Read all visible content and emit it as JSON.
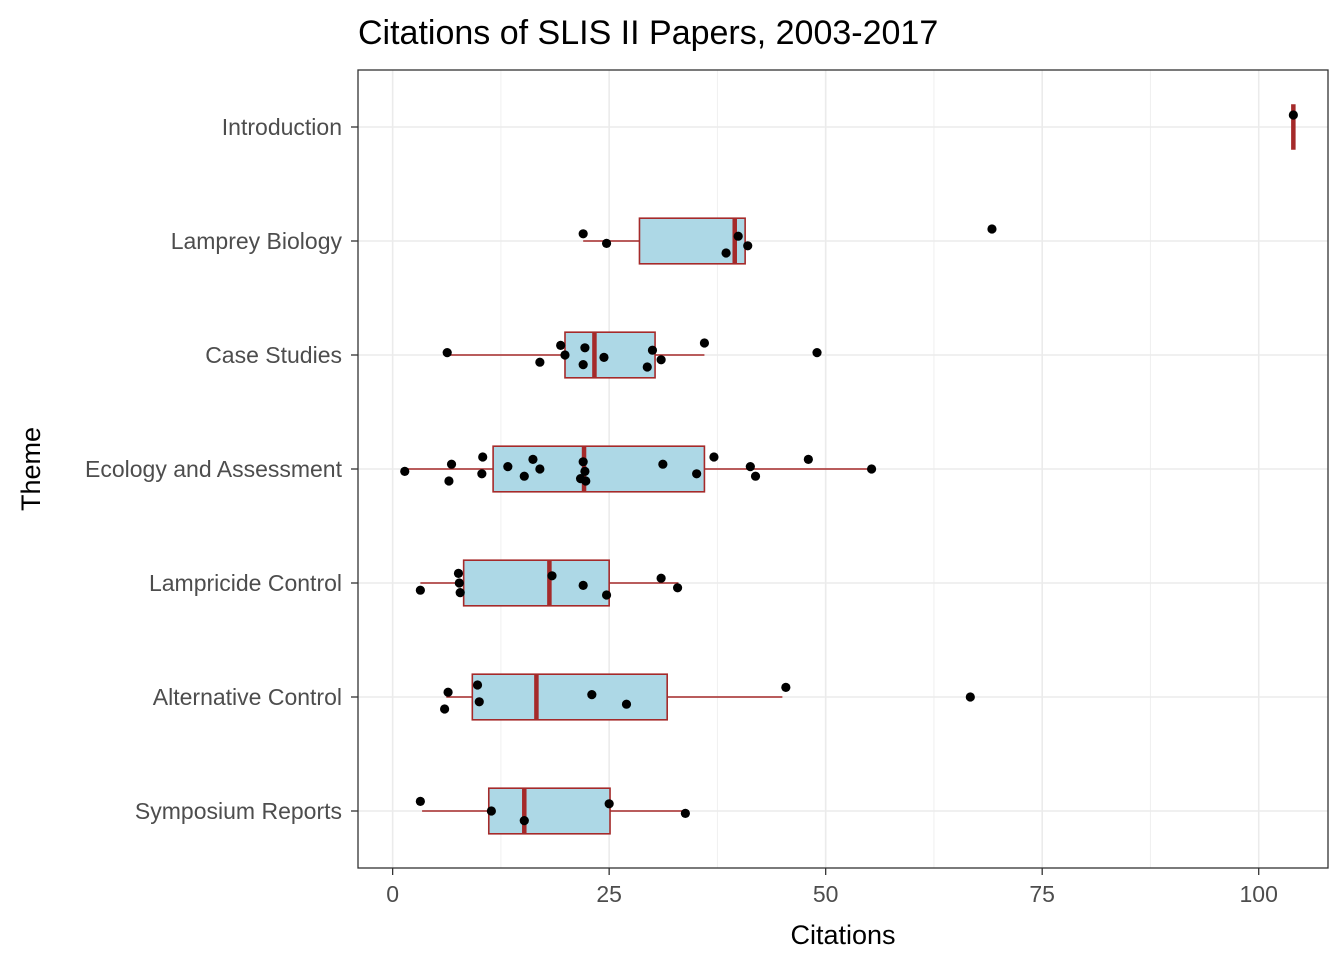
{
  "chart_data": {
    "type": "boxplot",
    "title": "Citations of SLIS II Papers, 2003-2017",
    "xlabel": "Citations",
    "ylabel": "Theme",
    "xlim": [
      -4,
      108
    ],
    "x_ticks": [
      "0",
      "25",
      "50",
      "75",
      "100"
    ],
    "grid": true,
    "box_fill": "#add8e6",
    "box_stroke": "#a52a2a",
    "point_color": "#000000",
    "categories": [
      {
        "name": "Introduction",
        "box": {
          "min": 104,
          "q1": 104,
          "median": 104,
          "q3": 104,
          "max": 104
        },
        "points": [
          104
        ]
      },
      {
        "name": "Lamprey Biology",
        "box": {
          "min": 22,
          "q1": 28.5,
          "median": 39.5,
          "q3": 40.7,
          "max": 40.7
        },
        "points": [
          22,
          24.7,
          38.5,
          39.9,
          41,
          69.2
        ]
      },
      {
        "name": "Case Studies",
        "box": {
          "min": 6.3,
          "q1": 19.9,
          "median": 23.3,
          "q3": 30.3,
          "max": 36
        },
        "points": [
          6.3,
          17,
          19.4,
          19.9,
          22,
          22.2,
          24.4,
          29.4,
          30,
          31,
          36,
          49
        ]
      },
      {
        "name": "Ecology and Assessment",
        "box": {
          "min": 1.1,
          "q1": 11.6,
          "median": 22.1,
          "q3": 36,
          "max": 55
        },
        "points": [
          1.4,
          6.5,
          6.8,
          10.3,
          10.4,
          13.3,
          15.2,
          16.2,
          17,
          21.7,
          22,
          22.2,
          22.3,
          31.2,
          35.1,
          37.1,
          41.3,
          41.9,
          48,
          55.3
        ]
      },
      {
        "name": "Lampricide Control",
        "box": {
          "min": 3.2,
          "q1": 8.2,
          "median": 18.1,
          "q3": 25,
          "max": 33
        },
        "points": [
          3.2,
          7.6,
          7.7,
          7.8,
          18.4,
          22,
          24.7,
          31,
          32.9
        ]
      },
      {
        "name": "Alternative Control",
        "box": {
          "min": 6.2,
          "q1": 9.2,
          "median": 16.6,
          "q3": 31.7,
          "max": 45
        },
        "points": [
          6,
          6.4,
          10,
          9.8,
          23,
          27,
          45.4,
          66.7
        ]
      },
      {
        "name": "Symposium Reports",
        "box": {
          "min": 3.4,
          "q1": 11.1,
          "median": 15.2,
          "q3": 25.1,
          "max": 33.6
        },
        "points": [
          3.2,
          11.4,
          15.2,
          25,
          33.8
        ]
      }
    ]
  }
}
